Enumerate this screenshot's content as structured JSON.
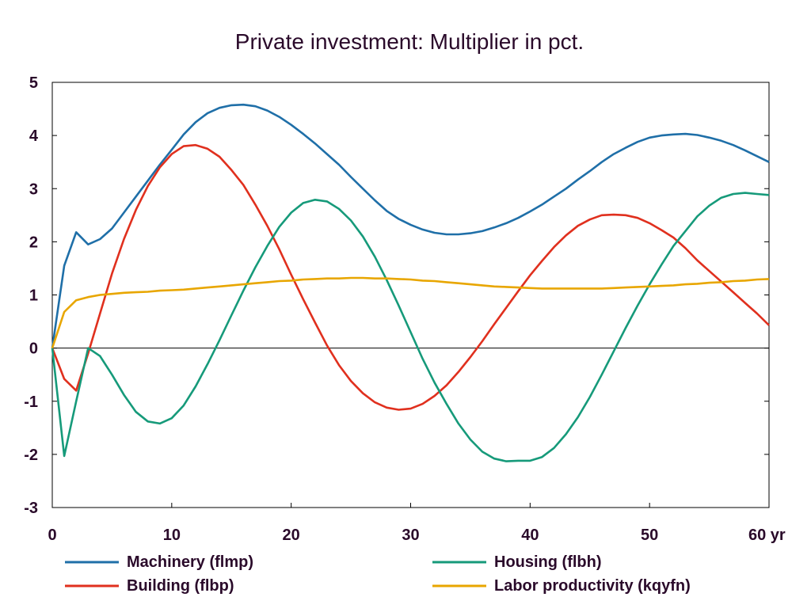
{
  "chart_data": {
    "type": "line",
    "title": "Private investment: Multiplier in pct.",
    "x_unit_label": "yr",
    "xlim": [
      0,
      60
    ],
    "ylim": [
      -3,
      5
    ],
    "x_ticks": [
      0,
      10,
      20,
      30,
      40,
      50,
      60
    ],
    "x_tick_labels": [
      "0",
      "10",
      "20",
      "30",
      "40",
      "50",
      "60 yr"
    ],
    "y_ticks": [
      -3,
      -2,
      -1,
      0,
      1,
      2,
      3,
      4,
      5
    ],
    "y_tick_labels": [
      "-3",
      "-2",
      "-1",
      "0",
      "1",
      "2",
      "3",
      "4",
      "5"
    ],
    "grid": false,
    "zero_line": true,
    "legend_placement": "bottom",
    "x": [
      0,
      1,
      2,
      3,
      4,
      5,
      6,
      7,
      8,
      9,
      10,
      11,
      12,
      13,
      14,
      15,
      16,
      17,
      18,
      19,
      20,
      21,
      22,
      23,
      24,
      25,
      26,
      27,
      28,
      29,
      30,
      31,
      32,
      33,
      34,
      35,
      36,
      37,
      38,
      39,
      40,
      41,
      42,
      43,
      44,
      45,
      46,
      47,
      48,
      49,
      50,
      51,
      52,
      53,
      54,
      55,
      56,
      57,
      58,
      59,
      60
    ],
    "series": [
      {
        "name": "Machinery (flmp)",
        "color": "#1f6fa8",
        "values": [
          0,
          1.55,
          2.18,
          1.95,
          2.05,
          2.25,
          2.55,
          2.85,
          3.15,
          3.45,
          3.73,
          4.02,
          4.25,
          4.42,
          4.52,
          4.57,
          4.58,
          4.55,
          4.47,
          4.35,
          4.2,
          4.03,
          3.85,
          3.65,
          3.45,
          3.22,
          3.0,
          2.78,
          2.58,
          2.43,
          2.32,
          2.23,
          2.17,
          2.14,
          2.14,
          2.16,
          2.2,
          2.27,
          2.35,
          2.45,
          2.57,
          2.7,
          2.85,
          3.0,
          3.17,
          3.33,
          3.5,
          3.65,
          3.77,
          3.88,
          3.96,
          4.0,
          4.02,
          4.03,
          4.01,
          3.96,
          3.9,
          3.82,
          3.72,
          3.61,
          3.5
        ]
      },
      {
        "name": "Building (flbp)",
        "color": "#e0301e",
        "values": [
          0,
          -0.58,
          -0.8,
          -0.1,
          0.65,
          1.4,
          2.05,
          2.6,
          3.05,
          3.4,
          3.65,
          3.8,
          3.82,
          3.75,
          3.6,
          3.35,
          3.07,
          2.7,
          2.3,
          1.86,
          1.38,
          0.92,
          0.48,
          0.05,
          -0.32,
          -0.62,
          -0.85,
          -1.02,
          -1.12,
          -1.16,
          -1.14,
          -1.05,
          -0.9,
          -0.7,
          -0.45,
          -0.17,
          0.13,
          0.45,
          0.76,
          1.07,
          1.37,
          1.64,
          1.9,
          2.12,
          2.3,
          2.42,
          2.5,
          2.51,
          2.5,
          2.45,
          2.35,
          2.22,
          2.08,
          1.88,
          1.65,
          1.45,
          1.25,
          1.05,
          0.85,
          0.65,
          0.43
        ]
      },
      {
        "name": "Housing (flbh)",
        "color": "#169a7a",
        "values": [
          0,
          -2.03,
          -1.0,
          0.0,
          -0.15,
          -0.5,
          -0.88,
          -1.2,
          -1.38,
          -1.42,
          -1.32,
          -1.08,
          -0.72,
          -0.3,
          0.15,
          0.62,
          1.08,
          1.52,
          1.92,
          2.28,
          2.55,
          2.73,
          2.79,
          2.76,
          2.62,
          2.4,
          2.1,
          1.72,
          1.28,
          0.8,
          0.3,
          -0.2,
          -0.65,
          -1.05,
          -1.42,
          -1.72,
          -1.95,
          -2.08,
          -2.13,
          -2.12,
          -2.12,
          -2.05,
          -1.88,
          -1.62,
          -1.3,
          -0.92,
          -0.5,
          -0.06,
          0.38,
          0.8,
          1.2,
          1.57,
          1.92,
          2.2,
          2.48,
          2.68,
          2.83,
          2.9,
          2.92,
          2.9,
          2.88
        ]
      },
      {
        "name": "Labor productivity (kqyfn)",
        "color": "#e8a600",
        "values": [
          0,
          0.68,
          0.9,
          0.96,
          1.0,
          1.02,
          1.04,
          1.05,
          1.06,
          1.08,
          1.09,
          1.1,
          1.12,
          1.14,
          1.16,
          1.18,
          1.2,
          1.22,
          1.24,
          1.26,
          1.27,
          1.29,
          1.3,
          1.31,
          1.31,
          1.32,
          1.32,
          1.31,
          1.31,
          1.3,
          1.29,
          1.27,
          1.26,
          1.24,
          1.22,
          1.2,
          1.18,
          1.16,
          1.15,
          1.14,
          1.13,
          1.12,
          1.12,
          1.12,
          1.12,
          1.12,
          1.12,
          1.13,
          1.14,
          1.15,
          1.16,
          1.17,
          1.18,
          1.2,
          1.21,
          1.23,
          1.24,
          1.26,
          1.27,
          1.29,
          1.3
        ]
      }
    ]
  }
}
